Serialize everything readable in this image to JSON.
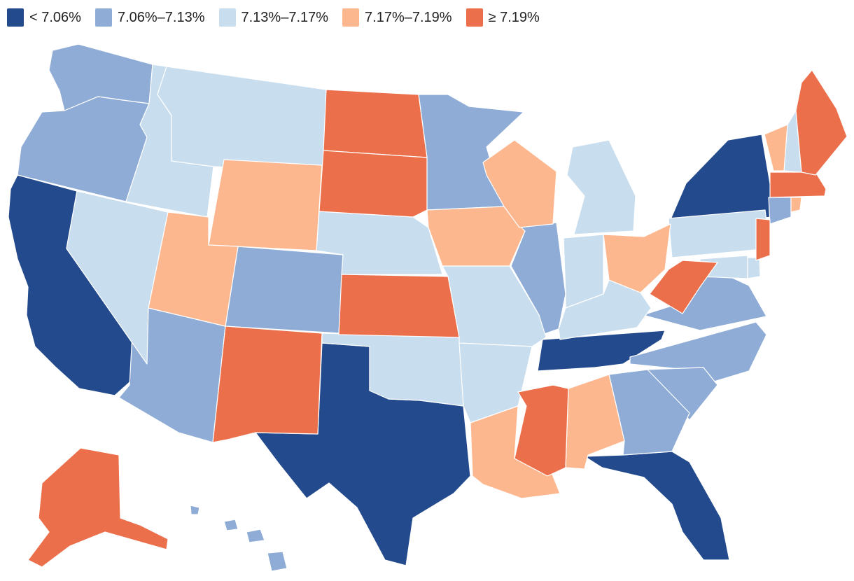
{
  "legend": {
    "items": [
      {
        "label": "< 7.06%",
        "color": "#234a8c"
      },
      {
        "label": "7.06%–7.13%",
        "color": "#8eacd5"
      },
      {
        "label": "7.13%–7.17%",
        "color": "#c8ddee"
      },
      {
        "label": "7.17%–7.19%",
        "color": "#fdb78f"
      },
      {
        "label": "≥ 7.19%",
        "color": "#ec6f4b"
      }
    ]
  },
  "states": [
    {
      "code": "CA",
      "bin": 0
    },
    {
      "code": "TX",
      "bin": 0
    },
    {
      "code": "FL",
      "bin": 0
    },
    {
      "code": "NY",
      "bin": 0
    },
    {
      "code": "TN",
      "bin": 0
    },
    {
      "code": "WA",
      "bin": 1
    },
    {
      "code": "OR",
      "bin": 1
    },
    {
      "code": "AZ",
      "bin": 1
    },
    {
      "code": "CO",
      "bin": 1
    },
    {
      "code": "MN",
      "bin": 1
    },
    {
      "code": "IL",
      "bin": 1
    },
    {
      "code": "VA",
      "bin": 1
    },
    {
      "code": "NC",
      "bin": 1
    },
    {
      "code": "SC",
      "bin": 1
    },
    {
      "code": "GA",
      "bin": 1
    },
    {
      "code": "CT",
      "bin": 1
    },
    {
      "code": "HI",
      "bin": 1
    },
    {
      "code": "ID",
      "bin": 2
    },
    {
      "code": "MT",
      "bin": 2
    },
    {
      "code": "NV",
      "bin": 2
    },
    {
      "code": "NE",
      "bin": 2
    },
    {
      "code": "OK",
      "bin": 2
    },
    {
      "code": "MO",
      "bin": 2
    },
    {
      "code": "AR",
      "bin": 2
    },
    {
      "code": "MI",
      "bin": 2
    },
    {
      "code": "IN",
      "bin": 2
    },
    {
      "code": "KY",
      "bin": 2
    },
    {
      "code": "PA",
      "bin": 2
    },
    {
      "code": "NH",
      "bin": 2
    },
    {
      "code": "MD",
      "bin": 2
    },
    {
      "code": "DE",
      "bin": 2
    },
    {
      "code": "WY",
      "bin": 3
    },
    {
      "code": "UT",
      "bin": 3
    },
    {
      "code": "IA",
      "bin": 3
    },
    {
      "code": "WI",
      "bin": 3
    },
    {
      "code": "OH",
      "bin": 3
    },
    {
      "code": "LA",
      "bin": 3
    },
    {
      "code": "AL",
      "bin": 3
    },
    {
      "code": "VT",
      "bin": 3
    },
    {
      "code": "RI",
      "bin": 3
    },
    {
      "code": "ND",
      "bin": 4
    },
    {
      "code": "SD",
      "bin": 4
    },
    {
      "code": "KS",
      "bin": 4
    },
    {
      "code": "NM",
      "bin": 4
    },
    {
      "code": "MS",
      "bin": 4
    },
    {
      "code": "WV",
      "bin": 4
    },
    {
      "code": "NJ",
      "bin": 4
    },
    {
      "code": "MA",
      "bin": 4
    },
    {
      "code": "ME",
      "bin": 4
    },
    {
      "code": "AK",
      "bin": 4
    }
  ]
}
